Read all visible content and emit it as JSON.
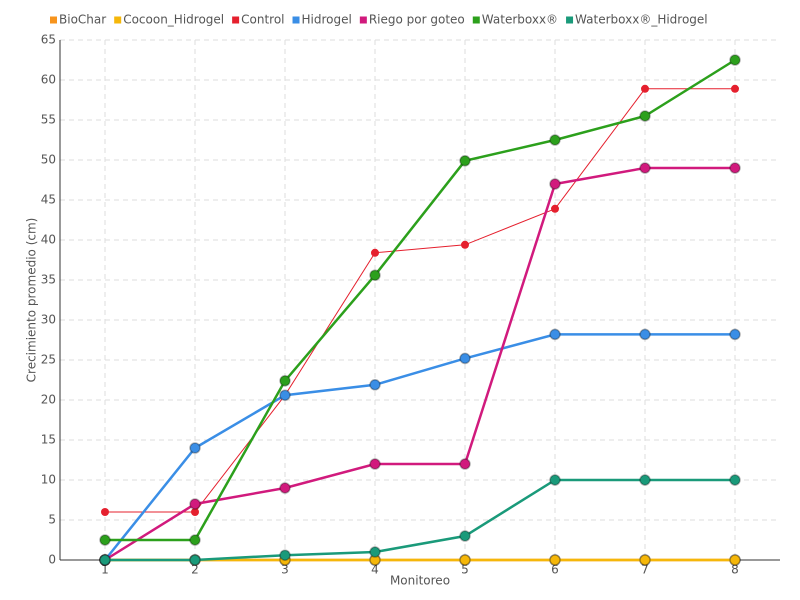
{
  "chart_data": {
    "type": "line",
    "x_label": "Monitoreo",
    "y_label": "Crecimiento promedio (cm)",
    "categories": [
      "1",
      "2",
      "3",
      "4",
      "5",
      "6",
      "7",
      "8"
    ],
    "ylim": [
      0,
      65
    ],
    "yticks": [
      0,
      5,
      10,
      15,
      20,
      25,
      30,
      35,
      40,
      45,
      50,
      55,
      60,
      65
    ],
    "grid": true,
    "legend": "top",
    "series": [
      {
        "name": "BioChar",
        "color": "#f7941d",
        "line_width": 2.5,
        "values": [
          0,
          0,
          0,
          0,
          0,
          0,
          0,
          0
        ]
      },
      {
        "name": "Cocoon_Hidrogel",
        "color": "#f5b70a",
        "line_width": 2.5,
        "values": [
          0,
          0,
          0,
          0,
          0,
          0,
          0,
          0
        ]
      },
      {
        "name": "Control",
        "color": "#e5202e",
        "line_width": 1,
        "values": [
          6,
          6,
          20.6,
          38.4,
          39.4,
          43.9,
          58.9,
          58.9
        ]
      },
      {
        "name": "Hidrogel",
        "color": "#3a8ee6",
        "line_width": 2.5,
        "values": [
          0,
          14,
          20.6,
          21.9,
          25.2,
          28.2,
          28.2,
          28.2
        ]
      },
      {
        "name": "Riego por goteo",
        "color": "#d11a7d",
        "line_width": 2.5,
        "values": [
          0,
          7,
          9,
          12,
          12,
          47,
          49,
          49
        ]
      },
      {
        "name": "Waterboxx®",
        "color": "#2ca01c",
        "line_width": 2.5,
        "values": [
          2.5,
          2.5,
          22.4,
          35.6,
          49.9,
          52.5,
          55.5,
          62.5
        ]
      },
      {
        "name": "Waterboxx®_Hidrogel",
        "color": "#1a9a7a",
        "line_width": 2.5,
        "values": [
          0,
          0,
          0.6,
          1,
          3,
          10,
          10,
          10
        ]
      }
    ]
  }
}
